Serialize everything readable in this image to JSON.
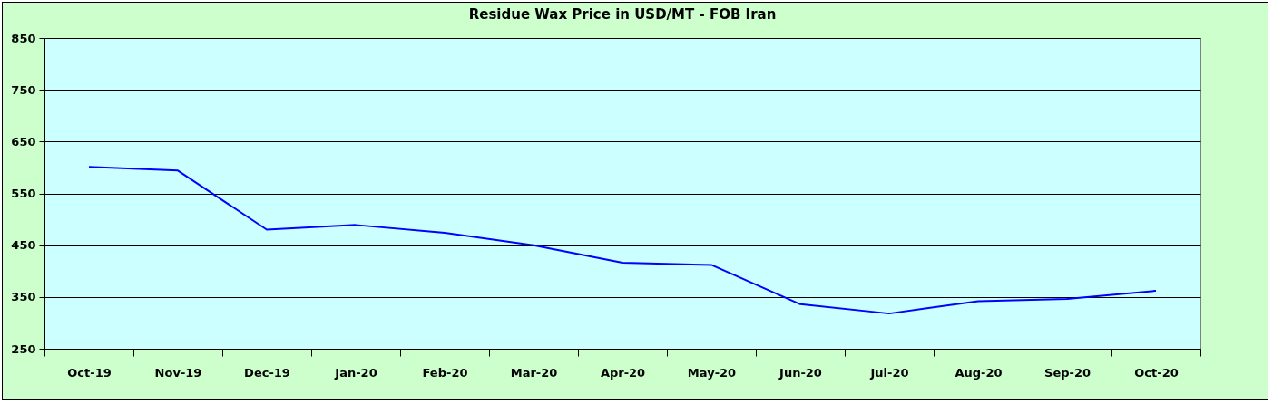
{
  "chart_data": {
    "type": "line",
    "title": "Residue Wax Price in USD/MT - FOB Iran",
    "categories": [
      "Oct-19",
      "Nov-19",
      "Dec-19",
      "Jan-20",
      "Feb-20",
      "Mar-20",
      "Apr-20",
      "May-20",
      "Jun-20",
      "Jul-20",
      "Aug-20",
      "Sep-20",
      "Oct-20"
    ],
    "series": [
      {
        "color": "#0000ff",
        "values": [
          601,
          594,
          480,
          489,
          474,
          450,
          416,
          412,
          336,
          318,
          342,
          346,
          362
        ]
      }
    ],
    "ylim": [
      250,
      850
    ],
    "yticks": [
      250,
      350,
      450,
      550,
      650,
      750,
      850
    ],
    "grid": "y",
    "legend": false,
    "marker": "none",
    "line_style": "solid"
  }
}
